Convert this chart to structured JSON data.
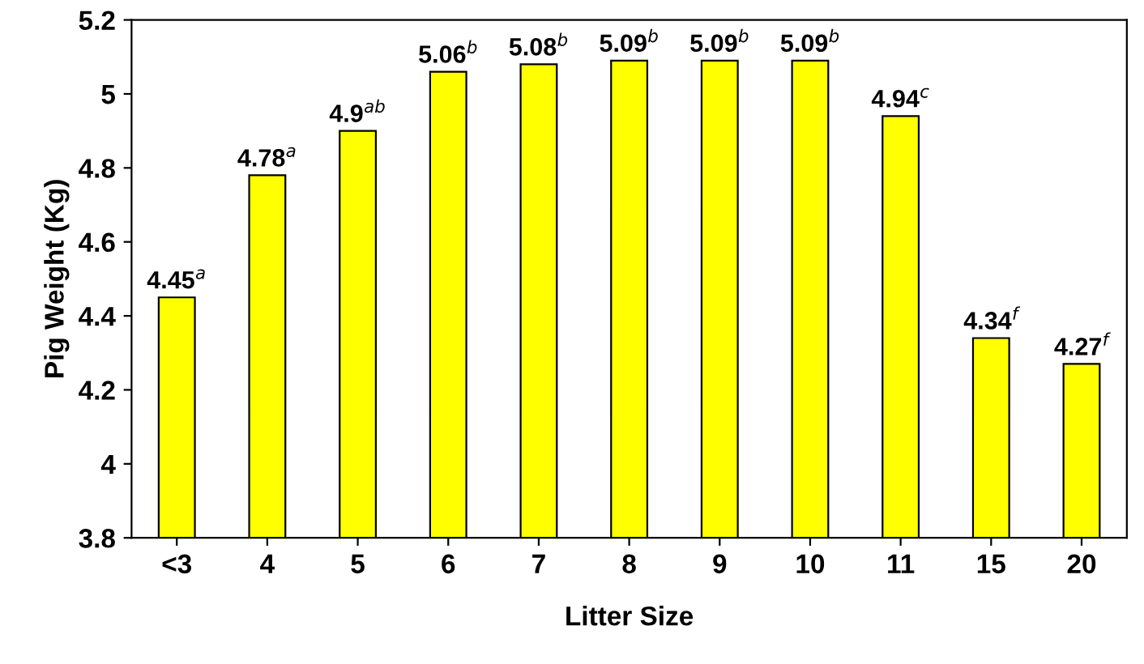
{
  "chart_data": {
    "type": "bar",
    "xlabel": "Litter Size",
    "ylabel": "Pig Weight (Kg)",
    "categories": [
      "<3",
      "4",
      "5",
      "6",
      "7",
      "8",
      "9",
      "10",
      "11",
      "15",
      "20"
    ],
    "values": [
      4.45,
      4.78,
      4.9,
      5.06,
      5.08,
      5.09,
      5.09,
      5.09,
      4.94,
      4.34,
      4.27
    ],
    "value_labels": [
      "4.45$^{a}$",
      "4.78$^{a}$",
      "4.9$^{ab}$",
      "5.06$^{b}$",
      "5.08$^{b}$",
      "5.09$^{b}$",
      "5.09$^{b}$",
      "5.09$^{b}$",
      "4.94$^{c}$",
      "4.34$^{f}$",
      "4.27$^{f}$"
    ],
    "color": "#ffff00",
    "ylim": [
      3.8,
      5.2
    ],
    "yticks": [
      3.8,
      4,
      4.2,
      4.4,
      4.6,
      4.8,
      5,
      5.2
    ],
    "grid": false,
    "legend": false
  }
}
